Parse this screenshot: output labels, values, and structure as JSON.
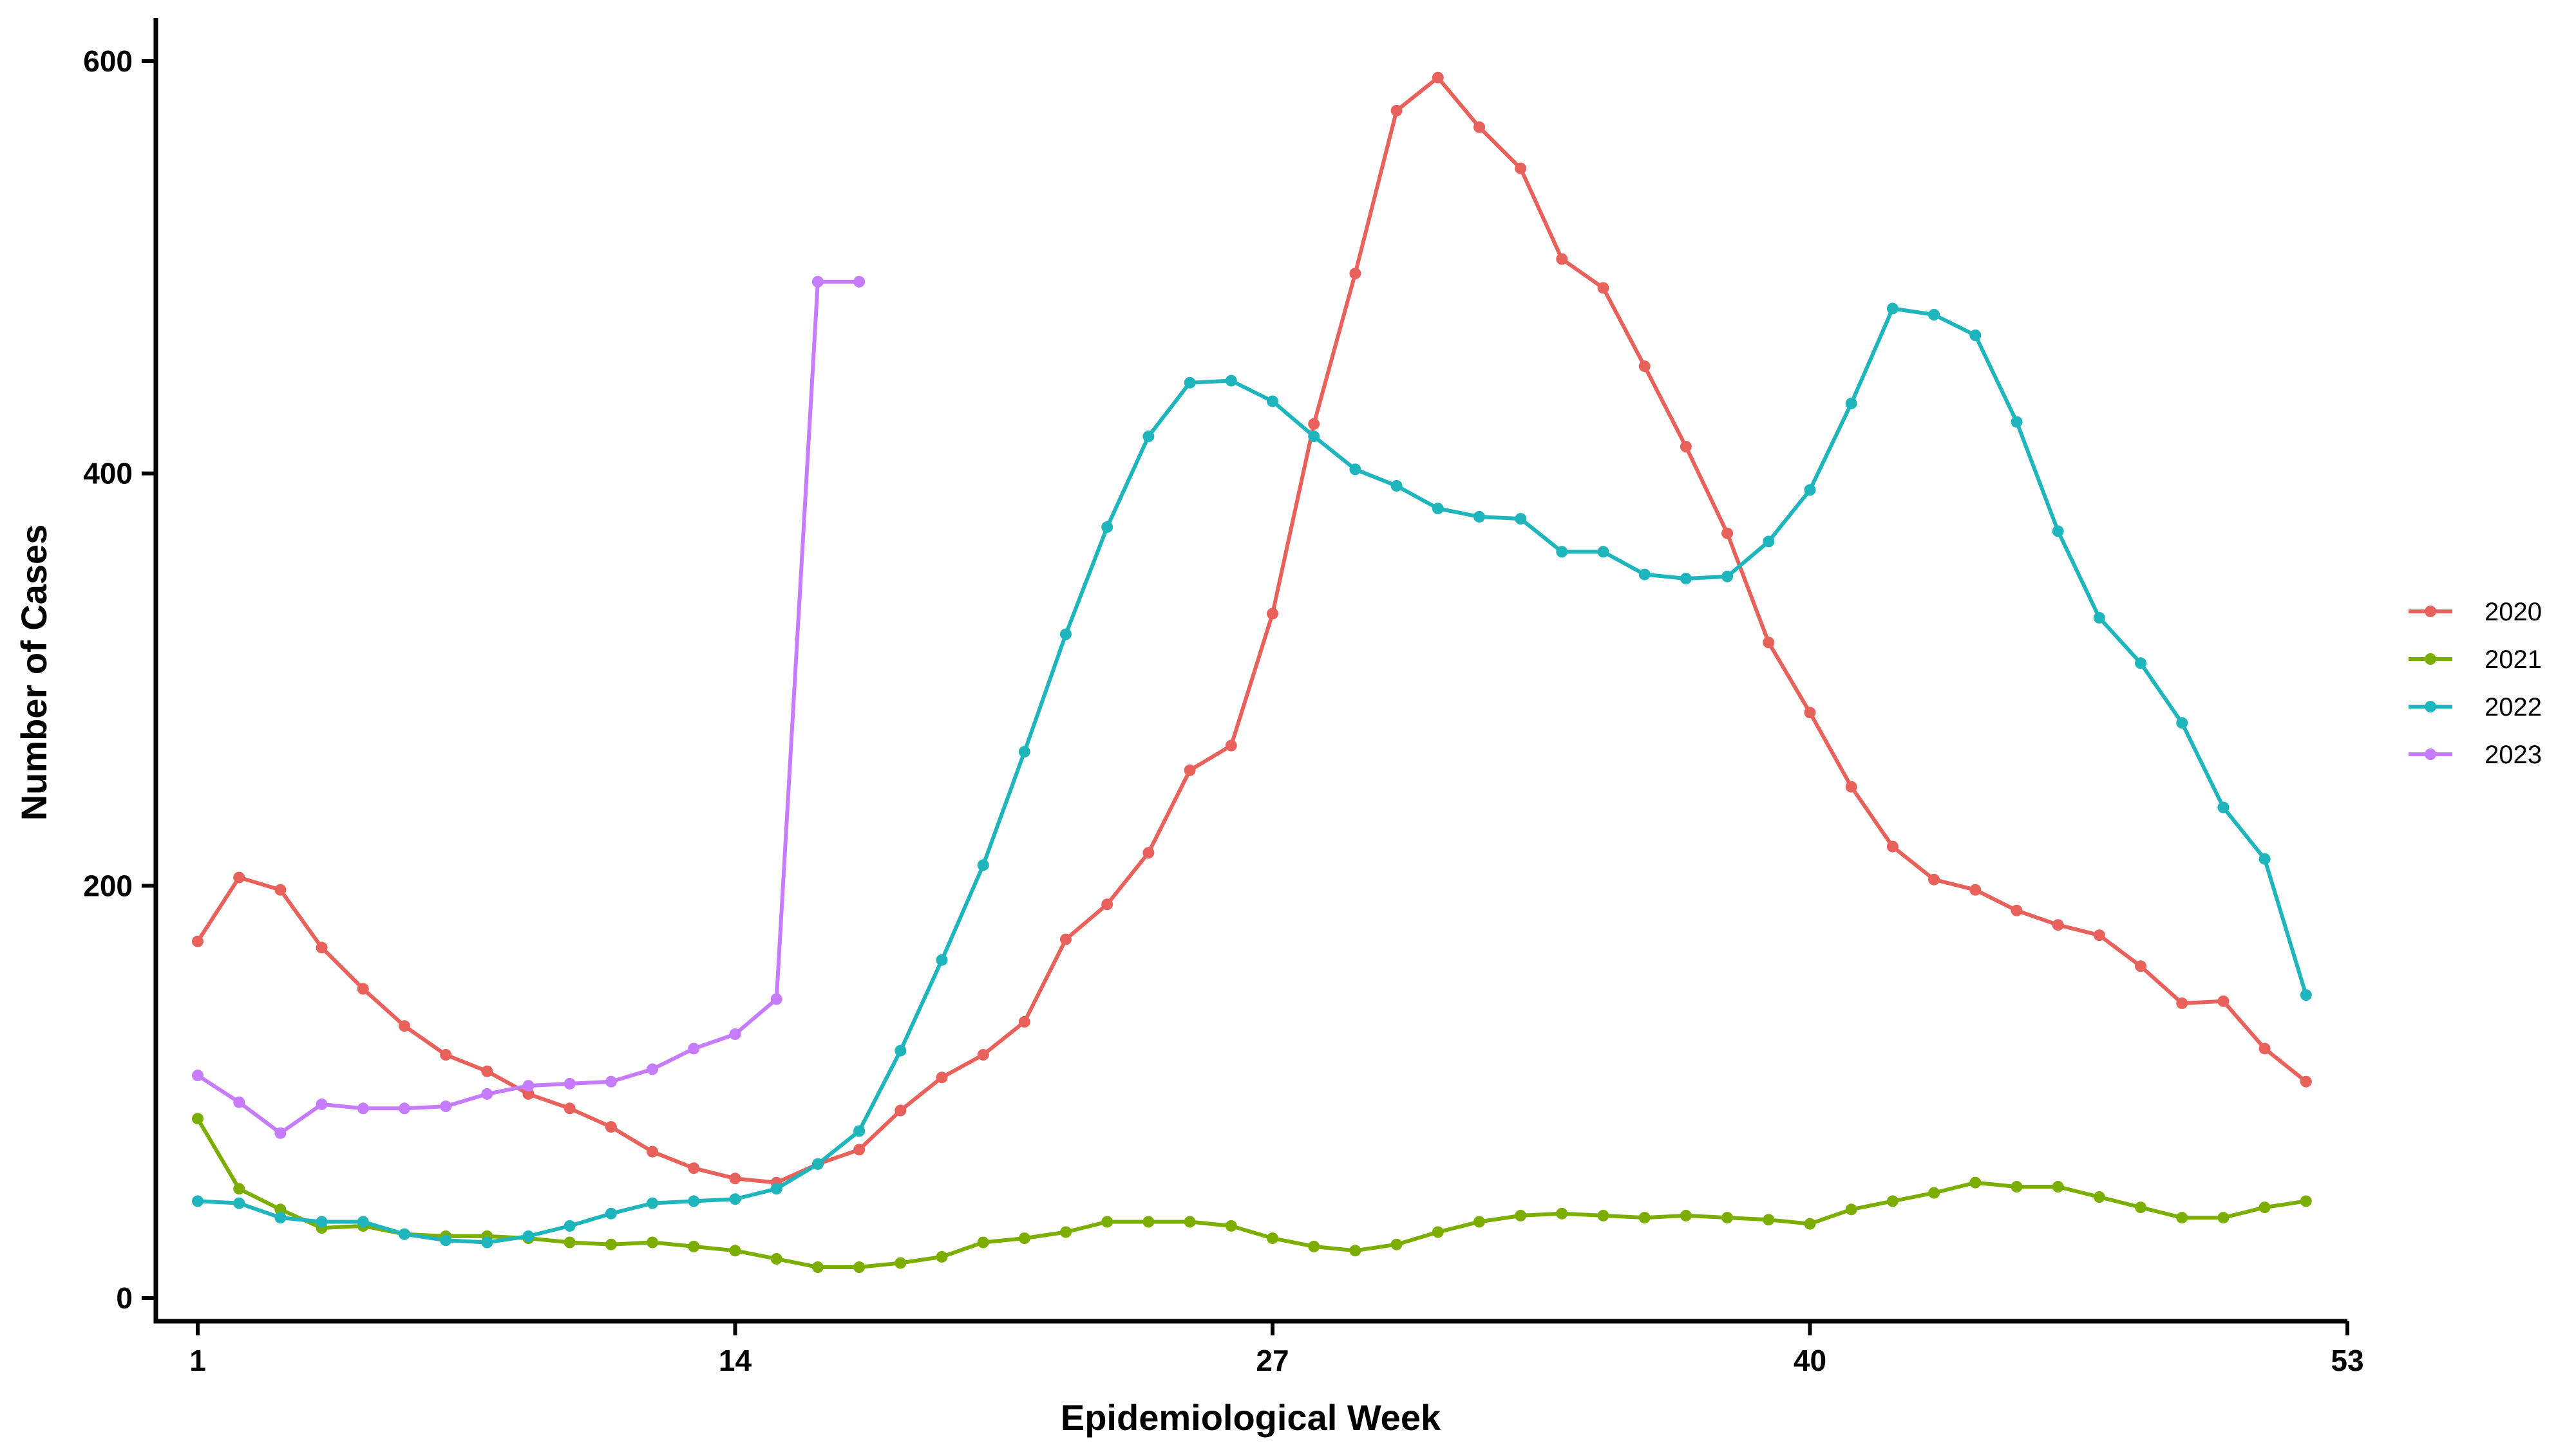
{
  "chart_data": {
    "type": "line",
    "title": "",
    "xlabel": "Epidemiological Week",
    "ylabel": "Number of Cases",
    "xlim": [
      0,
      53
    ],
    "ylim": [
      -10,
      620
    ],
    "xticks": [
      1,
      14,
      27,
      40,
      53
    ],
    "yticks": [
      0,
      200,
      400,
      600
    ],
    "grid": false,
    "legend_position": "right",
    "series": [
      {
        "name": "2020",
        "color": "#E8615B",
        "x": [
          1,
          2,
          3,
          4,
          5,
          6,
          7,
          8,
          9,
          10,
          11,
          12,
          13,
          14,
          15,
          16,
          17,
          18,
          19,
          20,
          21,
          22,
          23,
          24,
          25,
          26,
          27,
          28,
          29,
          30,
          31,
          32,
          33,
          34,
          35,
          36,
          37,
          38,
          39,
          40,
          41,
          42,
          43,
          44,
          45,
          46,
          47,
          48,
          49,
          50,
          51,
          52
        ],
        "values": [
          173,
          204,
          198,
          170,
          150,
          132,
          118,
          110,
          99,
          92,
          83,
          71,
          63,
          58,
          56,
          65,
          72,
          91,
          107,
          118,
          134,
          174,
          191,
          216,
          256,
          268,
          332,
          424,
          497,
          576,
          592,
          568,
          548,
          504,
          490,
          452,
          413,
          371,
          318,
          284,
          248,
          219,
          203,
          198,
          188,
          181,
          176,
          161,
          143,
          144,
          121,
          105
        ]
      },
      {
        "name": "2021",
        "color": "#7CAE00",
        "x": [
          1,
          2,
          3,
          4,
          5,
          6,
          7,
          8,
          9,
          10,
          11,
          12,
          13,
          14,
          15,
          16,
          17,
          18,
          19,
          20,
          21,
          22,
          23,
          24,
          25,
          26,
          27,
          28,
          29,
          30,
          31,
          32,
          33,
          34,
          35,
          36,
          37,
          38,
          39,
          40,
          41,
          42,
          43,
          44,
          45,
          46,
          47,
          48,
          49,
          50,
          51,
          52
        ],
        "values": [
          87,
          53,
          43,
          34,
          35,
          31,
          30,
          30,
          29,
          27,
          26,
          27,
          25,
          23,
          19,
          15,
          15,
          17,
          20,
          27,
          29,
          32,
          37,
          37,
          37,
          35,
          29,
          25,
          23,
          26,
          32,
          37,
          40,
          41,
          40,
          39,
          40,
          39,
          38,
          36,
          43,
          47,
          51,
          56,
          54,
          54,
          49,
          44,
          39,
          39,
          44,
          47
        ]
      },
      {
        "name": "2022",
        "color": "#1FB5BD",
        "x": [
          1,
          2,
          3,
          4,
          5,
          6,
          7,
          8,
          9,
          10,
          11,
          12,
          13,
          14,
          15,
          16,
          17,
          18,
          19,
          20,
          21,
          22,
          23,
          24,
          25,
          26,
          27,
          28,
          29,
          30,
          31,
          32,
          33,
          34,
          35,
          36,
          37,
          38,
          39,
          40,
          41,
          42,
          43,
          44,
          45,
          46,
          47,
          48,
          49,
          50,
          51,
          52
        ],
        "values": [
          47,
          46,
          39,
          37,
          37,
          31,
          28,
          27,
          30,
          35,
          41,
          46,
          47,
          48,
          53,
          65,
          81,
          120,
          164,
          210,
          265,
          322,
          374,
          418,
          444,
          445,
          435,
          418,
          402,
          394,
          383,
          379,
          378,
          362,
          362,
          351,
          349,
          350,
          367,
          392,
          434,
          480,
          477,
          467,
          425,
          372,
          330,
          308,
          279,
          238,
          213,
          147
        ]
      },
      {
        "name": "2023",
        "color": "#C77CFF",
        "x": [
          1,
          2,
          3,
          4,
          5,
          6,
          7,
          8,
          9,
          10,
          11,
          12,
          13,
          14,
          15,
          16,
          17
        ],
        "values": [
          108,
          95,
          80,
          94,
          92,
          92,
          93,
          99,
          103,
          104,
          105,
          111,
          121,
          128,
          145,
          493,
          493
        ]
      }
    ]
  }
}
